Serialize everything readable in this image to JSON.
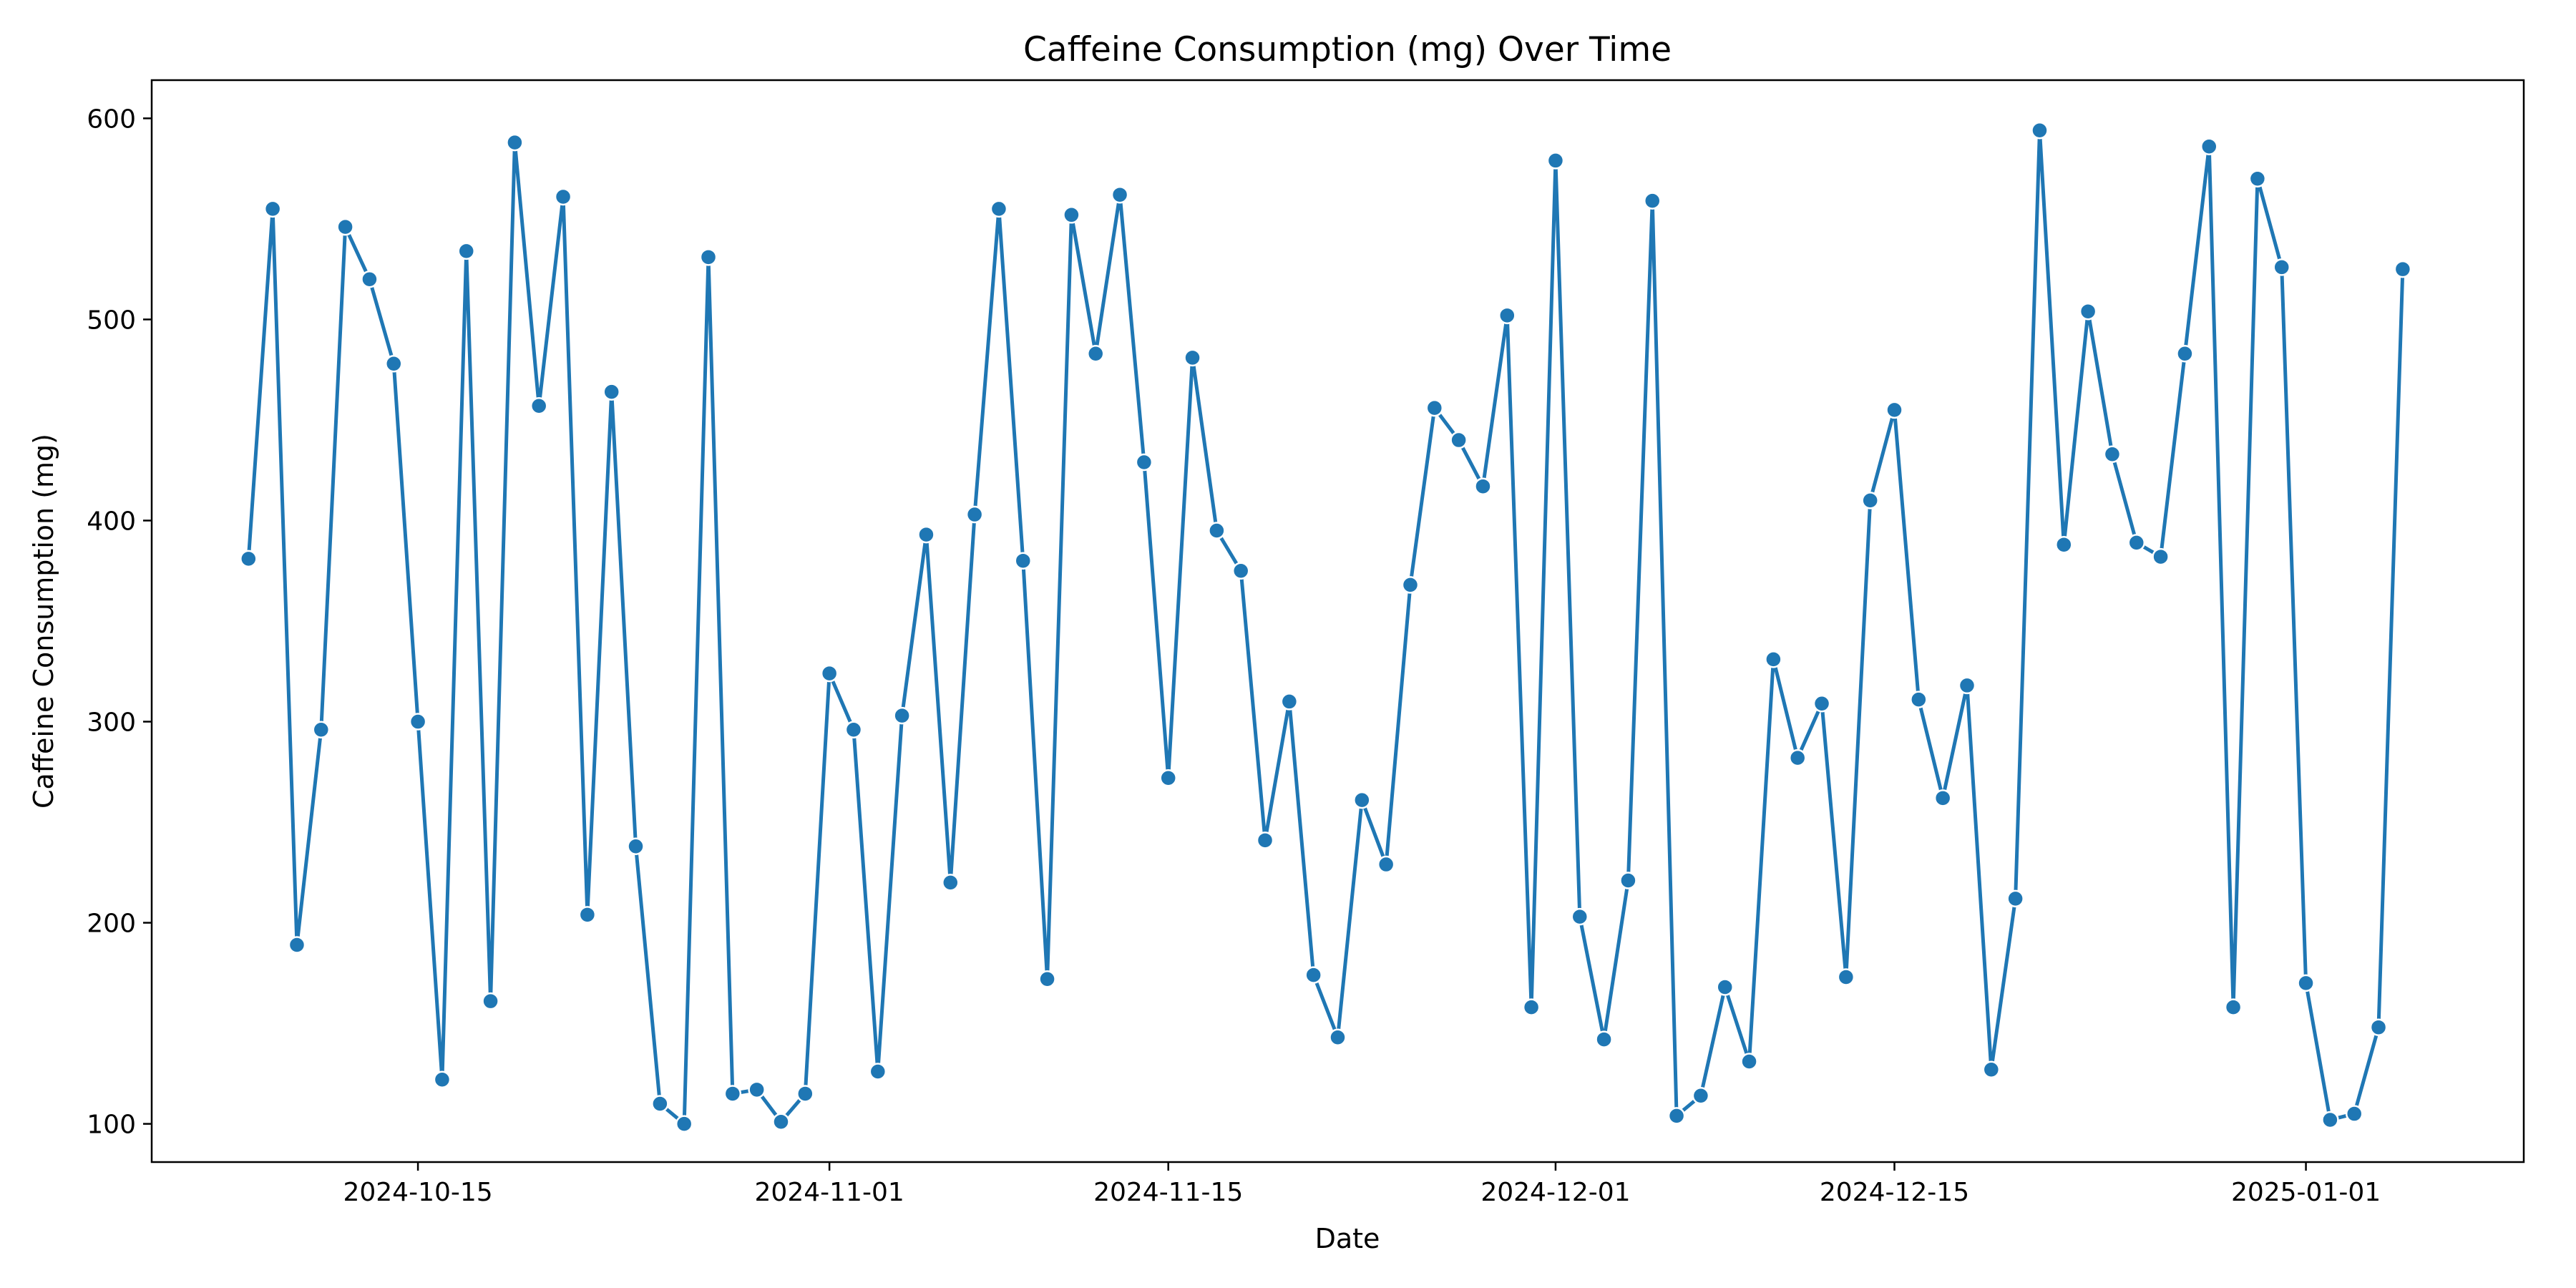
{
  "chart_data": {
    "type": "line",
    "title": "Caffeine Consumption (mg) Over Time",
    "xlabel": "Date",
    "ylabel": "Caffeine Consumption (mg)",
    "color": "#1f77b4",
    "marker": "circle",
    "grid": false,
    "legend": "none",
    "x_start": "2024-10-08",
    "x_range": [
      "2024-10-04",
      "2025-01-10"
    ],
    "xticks": [
      "2024-10-15",
      "2024-11-01",
      "2024-11-15",
      "2024-12-01",
      "2024-12-15",
      "2025-01-01"
    ],
    "ylim": [
      81,
      619
    ],
    "yticks": [
      100,
      200,
      300,
      400,
      500,
      600
    ],
    "series": [
      {
        "values": [
          381,
          555,
          189,
          296,
          546,
          520,
          478,
          300,
          122,
          534,
          161,
          588,
          457,
          561,
          204,
          464,
          238,
          110,
          100,
          531,
          115,
          117,
          101,
          115,
          324,
          296,
          126,
          303,
          393,
          220,
          403,
          555,
          380,
          172,
          552,
          483,
          562,
          429,
          272,
          481,
          395,
          375,
          241,
          310,
          174,
          143,
          261,
          229,
          368,
          456,
          440,
          417,
          502,
          158,
          579,
          203,
          142,
          221,
          559,
          104,
          114,
          168,
          131,
          331,
          282,
          309,
          173,
          410,
          455,
          311,
          262,
          318,
          127,
          212,
          594,
          388,
          504,
          433,
          389,
          382,
          483,
          586,
          158,
          570,
          526,
          170,
          102,
          105,
          148,
          525
        ]
      }
    ]
  }
}
